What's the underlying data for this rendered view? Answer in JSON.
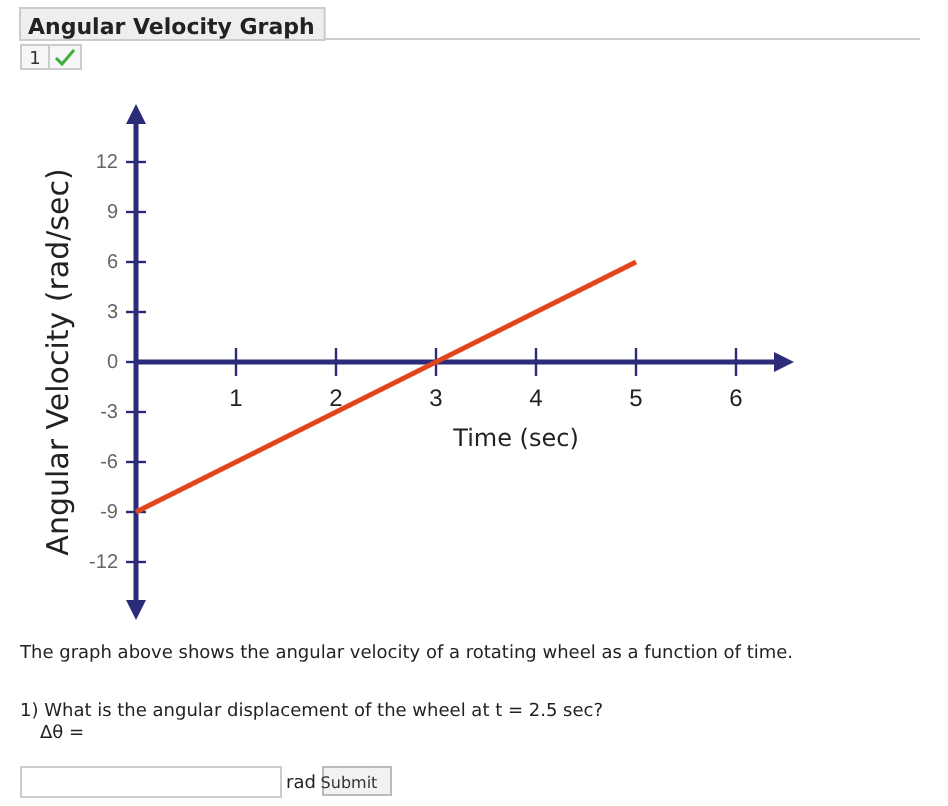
{
  "chart_data": {
    "type": "line",
    "title": "Angular Velocity Graph",
    "xlabel": "Time (sec)",
    "ylabel": "Angular Velocity (rad/sec)",
    "x": [
      0,
      5
    ],
    "series": [
      {
        "color": "#e2461c",
        "values": [
          -9,
          6
        ]
      }
    ],
    "xlim": [
      0,
      6.5
    ],
    "xticks": [
      1,
      2,
      3,
      4,
      5,
      6
    ],
    "ylim": [
      -15,
      15
    ],
    "yticks": [
      -12,
      -9,
      -6,
      -3,
      0,
      3,
      6,
      9,
      12
    ],
    "grid": false,
    "marker": "none",
    "line_style": "solid",
    "annotations": [
      "1",
      "The graph above shows the angular velocity of a rotating wheel as a function of time.",
      "1) What is the angular displacement of the wheel at t = 2.5 sec?",
      "Δθ =",
      "rad",
      "Submit"
    ]
  }
}
